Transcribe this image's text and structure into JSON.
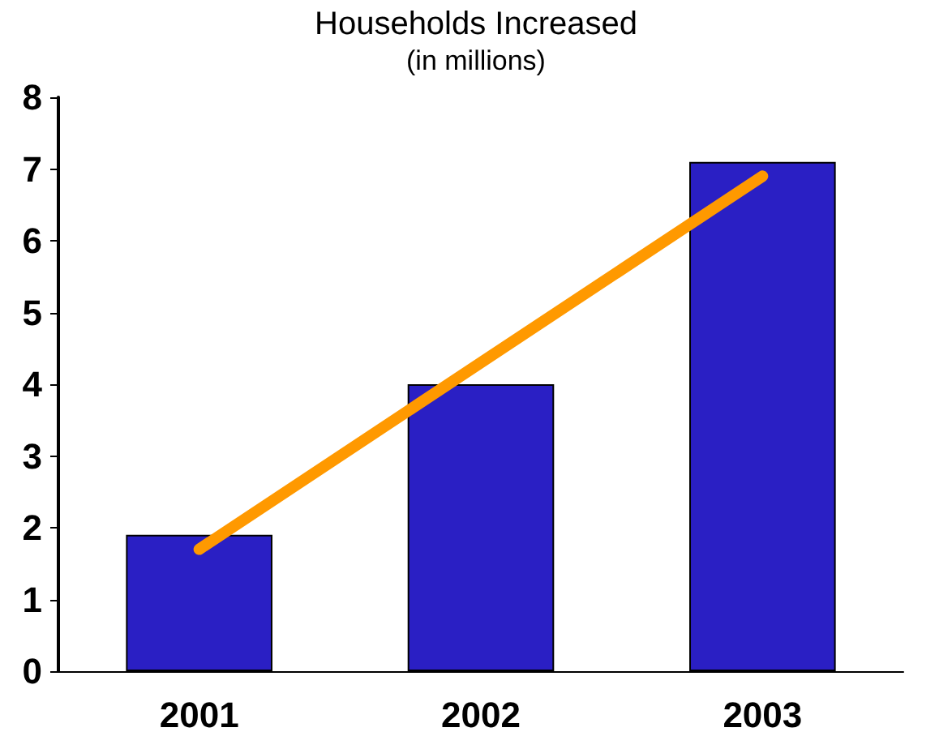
{
  "chart_data": {
    "type": "bar",
    "title": "Households Increased",
    "subtitle": "(in millions)",
    "categories": [
      "2001",
      "2002",
      "2003"
    ],
    "series": [
      {
        "color": "#2a1fc4",
        "values": [
          1.9,
          4.0,
          7.1
        ]
      },
      {
        "type": "line",
        "color": "#ff9900",
        "values": [
          1.7,
          4.3,
          6.9
        ]
      }
    ],
    "ylim": [
      0,
      8
    ],
    "yticks": [
      0,
      1,
      2,
      3,
      4,
      5,
      6,
      7,
      8
    ],
    "grid": false,
    "marker": "none",
    "line_style": "solid"
  }
}
